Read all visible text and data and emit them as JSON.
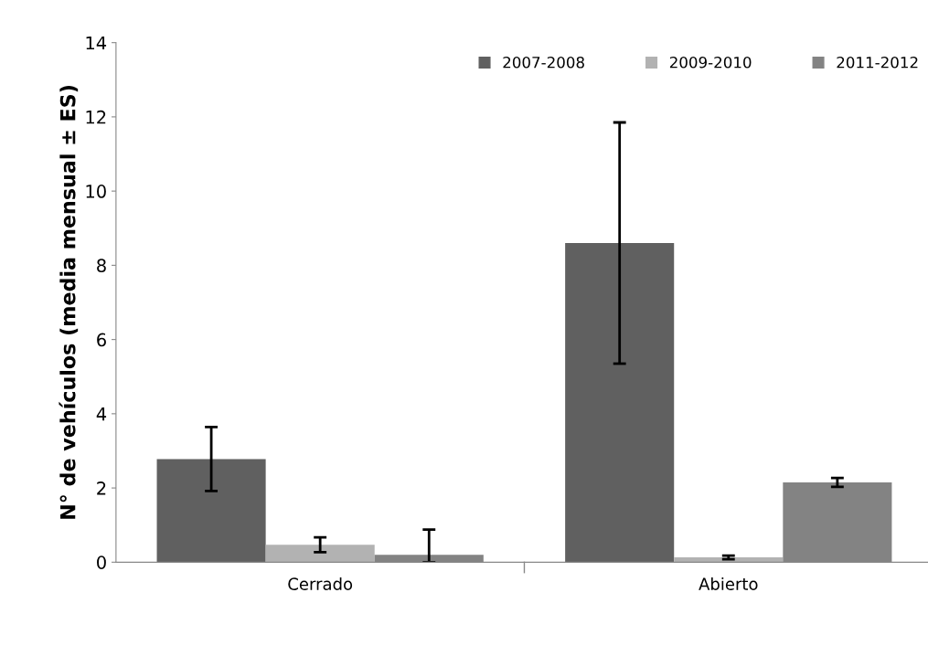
{
  "chart_data": {
    "type": "bar",
    "ylabel": "N° de vehículos (media mensual ± ES)",
    "categories": [
      "Cerrado",
      "Abierto"
    ],
    "series": [
      {
        "name": "2007-2008",
        "color": "#606060",
        "values": [
          2.78,
          8.6
        ],
        "errors": [
          0.86,
          3.25
        ]
      },
      {
        "name": "2009-2010",
        "color": "#b2b2b2",
        "values": [
          0.47,
          0.13
        ],
        "errors": [
          0.2,
          0.05
        ]
      },
      {
        "name": "2011-2012",
        "color": "#838383",
        "values": [
          0.2,
          2.15
        ],
        "errors": [
          [
            0,
            0.88
          ],
          0.12
        ]
      }
    ],
    "ylim": [
      0,
      14
    ],
    "yticks": [
      0,
      2,
      4,
      6,
      8,
      10,
      12,
      14
    ],
    "grid": false,
    "legend": "top right"
  }
}
